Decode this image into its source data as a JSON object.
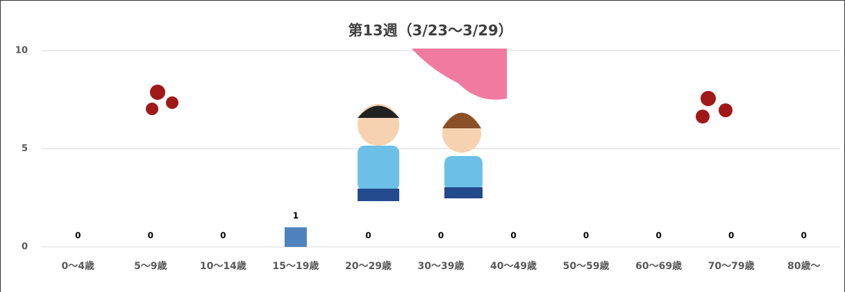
{
  "chart_data": {
    "type": "bar",
    "title": "第13週（3/23～3/29）",
    "categories": [
      "0～4歳",
      "5～9歳",
      "10～14歳",
      "15～19歳",
      "20～29歳",
      "30～39歳",
      "40～49歳",
      "50～59歳",
      "60～69歳",
      "70～79歳",
      "80歳～"
    ],
    "values": [
      0,
      0,
      0,
      1,
      0,
      0,
      0,
      0,
      0,
      0,
      0
    ],
    "color": "#4f81bd",
    "ylim": [
      0,
      10
    ],
    "yticks": [
      0,
      5,
      10
    ],
    "grid": true
  }
}
